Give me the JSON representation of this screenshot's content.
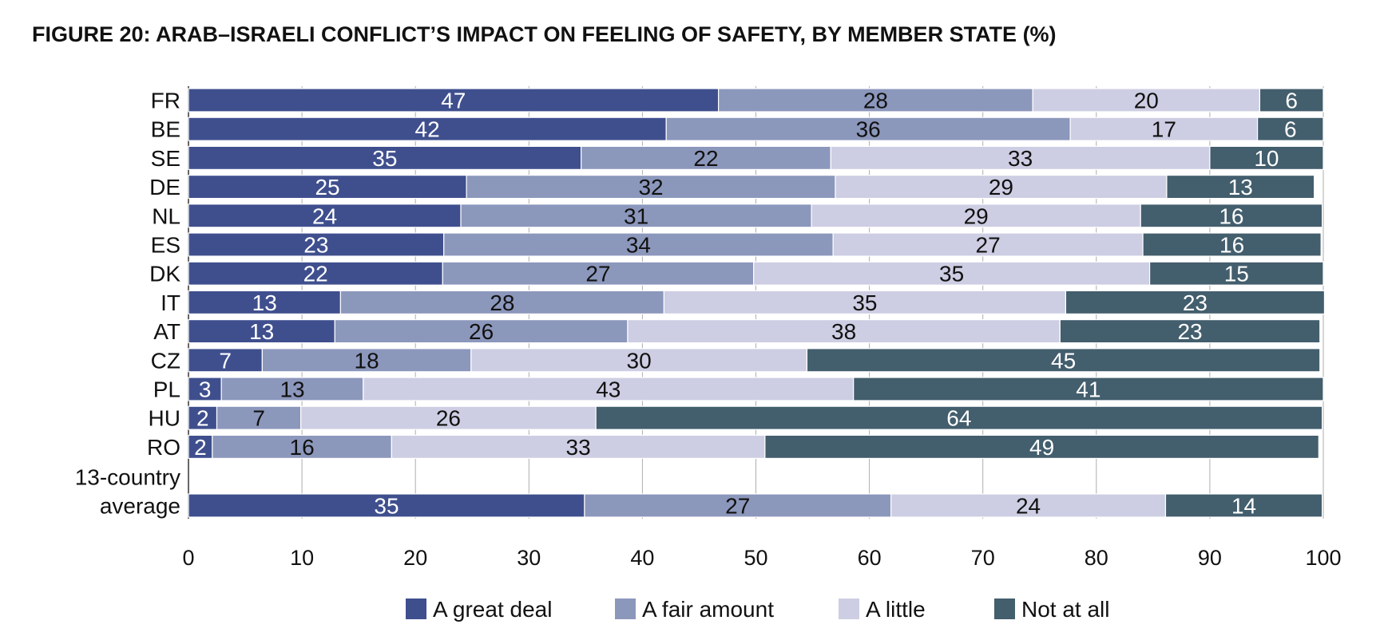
{
  "chart_data": {
    "type": "bar",
    "orientation": "horizontal",
    "stacked": true,
    "title": "FIGURE 20:  ARAB–ISRAELI CONFLICT’S IMPACT ON FEELING OF SAFETY, BY MEMBER STATE (%)",
    "xlabel": "",
    "ylabel": "",
    "xlim": [
      0,
      100
    ],
    "xticks": [
      "0",
      "10",
      "20",
      "30",
      "40",
      "50",
      "60",
      "70",
      "80",
      "90",
      "100"
    ],
    "grid": true,
    "legend_position": "bottom",
    "categories": [
      "FR",
      "BE",
      "SE",
      "DE",
      "NL",
      "ES",
      "DK",
      "IT",
      "AT",
      "CZ",
      "PL",
      "HU",
      "RO",
      "13-country average"
    ],
    "category_label_lines": [
      [
        "FR"
      ],
      [
        "BE"
      ],
      [
        "SE"
      ],
      [
        "DE"
      ],
      [
        "NL"
      ],
      [
        "ES"
      ],
      [
        "DK"
      ],
      [
        "IT"
      ],
      [
        "AT"
      ],
      [
        "CZ"
      ],
      [
        "PL"
      ],
      [
        "HU"
      ],
      [
        "RO"
      ],
      [
        "13-country",
        "average"
      ]
    ],
    "series": [
      {
        "name": "A great deal",
        "color": "#3F4F8E",
        "label_color": "#ffffff",
        "values": [
          46.7,
          42.1,
          34.6,
          24.5,
          24.0,
          22.5,
          22.4,
          13.4,
          12.9,
          6.5,
          2.9,
          2.5,
          2.1,
          34.9
        ],
        "labels": [
          "47",
          "42",
          "35",
          "25",
          "24",
          "23",
          "22",
          "13",
          "13",
          "7",
          "3",
          "2",
          "2",
          "35"
        ]
      },
      {
        "name": "A fair amount",
        "color": "#8C97BC",
        "label_color": "#111111",
        "values": [
          27.7,
          35.6,
          22.0,
          32.5,
          30.9,
          34.3,
          27.4,
          28.5,
          25.8,
          18.4,
          12.5,
          7.4,
          15.8,
          27.0
        ],
        "labels": [
          "28",
          "36",
          "22",
          "32",
          "31",
          "34",
          "27",
          "28",
          "26",
          "18",
          "13",
          "7",
          "16",
          "27"
        ]
      },
      {
        "name": "A little",
        "color": "#CDCEE3",
        "label_color": "#111111",
        "values": [
          20.0,
          16.5,
          33.4,
          29.2,
          29.0,
          27.3,
          34.9,
          35.4,
          38.1,
          29.6,
          43.2,
          26.0,
          32.9,
          24.2
        ],
        "labels": [
          "20",
          "17",
          "33",
          "29",
          "29",
          "27",
          "35",
          "35",
          "38",
          "30",
          "43",
          "26",
          "33",
          "24"
        ]
      },
      {
        "name": "Not at all",
        "color": "#435E6D",
        "label_color": "#ffffff",
        "values": [
          5.6,
          5.8,
          10.0,
          13.0,
          16.0,
          15.7,
          15.3,
          22.8,
          22.9,
          45.2,
          41.4,
          64.0,
          48.8,
          13.8
        ],
        "labels": [
          "6",
          "6",
          "10",
          "13",
          "16",
          "16",
          "15",
          "23",
          "23",
          "45",
          "41",
          "64",
          "49",
          "14"
        ]
      }
    ]
  }
}
